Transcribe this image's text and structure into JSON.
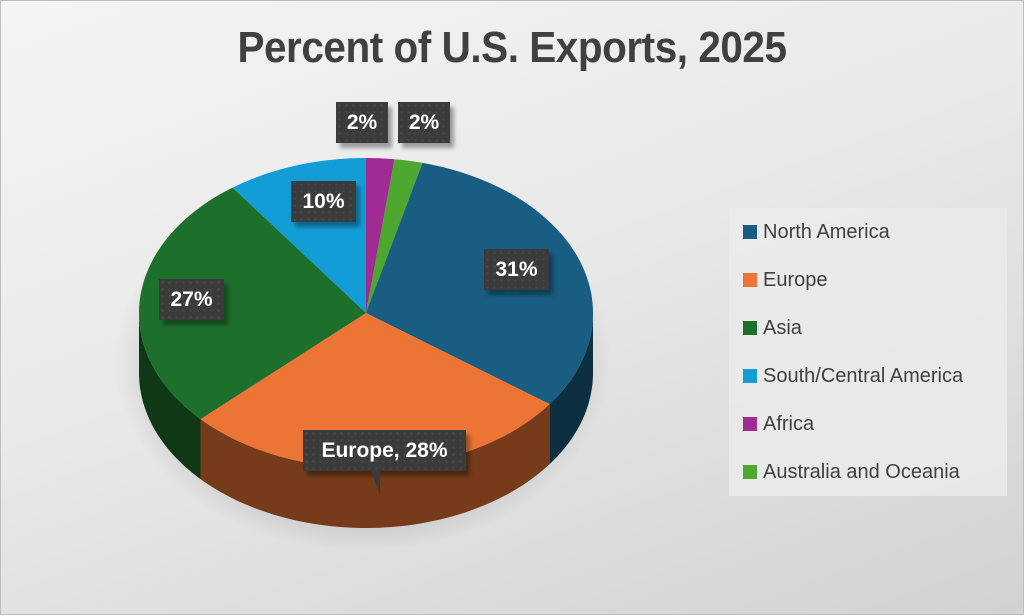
{
  "chart_data": {
    "type": "pie",
    "style": "3d-pie",
    "title": "Percent of U.S. Exports, 2025",
    "categories": [
      "North America",
      "Europe",
      "Asia",
      "South/Central America",
      "Africa",
      "Australia and Oceania"
    ],
    "values": [
      31,
      28,
      27,
      10,
      2,
      2
    ],
    "unit": "%",
    "colors": [
      "#175E82",
      "#EC7535",
      "#1C702C",
      "#139DD6",
      "#A02B93",
      "#4EA72E"
    ],
    "data_labels": [
      "31%",
      "Europe, 28%",
      "27%",
      "10%",
      "2%",
      "2%"
    ],
    "legend_position": "right",
    "slice_order_clockwise_from_top": [
      "Africa",
      "Australia and Oceania",
      "North America",
      "Europe",
      "Asia",
      "South/Central America"
    ]
  },
  "title": "Percent of U.S. Exports, 2025",
  "legend": {
    "items": [
      {
        "label": "North America",
        "color": "#175E82"
      },
      {
        "label": "Europe",
        "color": "#EC7535"
      },
      {
        "label": "Asia",
        "color": "#1C702C"
      },
      {
        "label": "South/Central America",
        "color": "#139DD6"
      },
      {
        "label": "Africa",
        "color": "#A02B93"
      },
      {
        "label": "Australia and Oceania",
        "color": "#4EA72E"
      }
    ]
  },
  "labels": {
    "north_america": "31%",
    "europe": "Europe, 28%",
    "asia": "27%",
    "south_central": "10%",
    "africa": "2%",
    "australia": "2%"
  }
}
